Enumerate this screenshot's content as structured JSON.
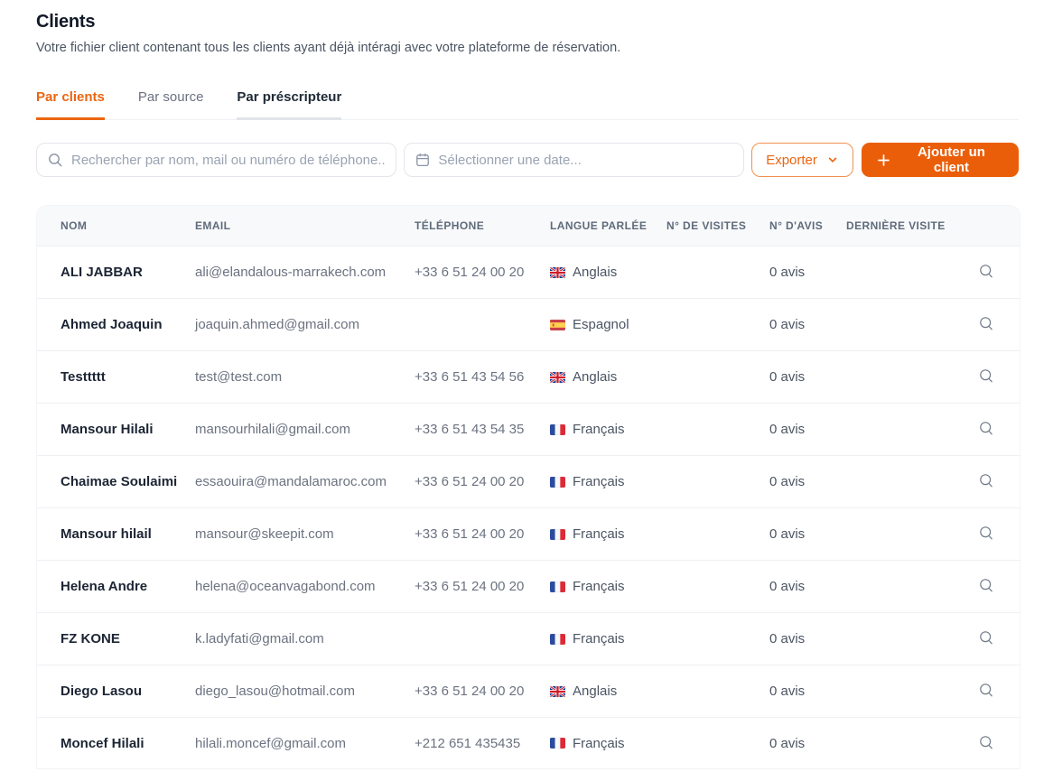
{
  "header": {
    "title": "Clients",
    "subtitle": "Votre fichier client contenant tous les clients ayant déjà intéragi avec votre plateforme de réservation."
  },
  "tabs": [
    {
      "label": "Par clients",
      "active": true
    },
    {
      "label": "Par source",
      "active": false
    },
    {
      "label": "Par préscripteur",
      "active": false
    }
  ],
  "toolbar": {
    "search_placeholder": "Rechercher par nom, mail ou numéro de téléphone...",
    "date_placeholder": "Sélectionner une date...",
    "export_label": "Exporter",
    "add_client_label": "Ajouter un client"
  },
  "colors": {
    "accent_orange": "#EC6511",
    "add_button_orange": "#EB5E09",
    "header_row_bg": "#F8F9FB",
    "muted_text": "#6B7280"
  },
  "table": {
    "columns": [
      "NOM",
      "EMAIL",
      "TÉLÉPHONE",
      "LANGUE PARLÉE",
      "N° DE VISITES",
      "N° D'AVIS",
      "DERNIÈRE VISITE"
    ],
    "rows": [
      {
        "name": "ALI JABBAR",
        "email": "ali@elandalous-marrakech.com",
        "phone": "+33 6 51 24 00 20",
        "language": {
          "flag": "gb",
          "label": "Anglais"
        },
        "visits": "",
        "reviews": "0 avis",
        "last_visit": ""
      },
      {
        "name": "Ahmed Joaquin",
        "email": "joaquin.ahmed@gmail.com",
        "phone": "",
        "language": {
          "flag": "es",
          "label": "Espagnol"
        },
        "visits": "",
        "reviews": "0 avis",
        "last_visit": ""
      },
      {
        "name": "Testtttt",
        "email": "test@test.com",
        "phone": "+33 6 51 43 54 56",
        "language": {
          "flag": "gb",
          "label": "Anglais"
        },
        "visits": "",
        "reviews": "0 avis",
        "last_visit": ""
      },
      {
        "name": "Mansour Hilali",
        "email": "mansourhilali@gmail.com",
        "phone": "+33 6 51 43 54 35",
        "language": {
          "flag": "fr",
          "label": "Français"
        },
        "visits": "",
        "reviews": "0 avis",
        "last_visit": ""
      },
      {
        "name": "Chaimae Soulaimi",
        "email": "essaouira@mandalamaroc.com",
        "phone": "+33 6 51 24 00 20",
        "language": {
          "flag": "fr",
          "label": "Français"
        },
        "visits": "",
        "reviews": "0 avis",
        "last_visit": ""
      },
      {
        "name": "Mansour hilail",
        "email": "mansour@skeepit.com",
        "phone": "+33 6 51 24 00 20",
        "language": {
          "flag": "fr",
          "label": "Français"
        },
        "visits": "",
        "reviews": "0 avis",
        "last_visit": ""
      },
      {
        "name": "Helena Andre",
        "email": "helena@oceanvagabond.com",
        "phone": "+33 6 51 24 00 20",
        "language": {
          "flag": "fr",
          "label": "Français"
        },
        "visits": "",
        "reviews": "0 avis",
        "last_visit": ""
      },
      {
        "name": "FZ KONE",
        "email": "k.ladyfati@gmail.com",
        "phone": "",
        "language": {
          "flag": "fr",
          "label": "Français"
        },
        "visits": "",
        "reviews": "0 avis",
        "last_visit": ""
      },
      {
        "name": "Diego Lasou",
        "email": "diego_lasou@hotmail.com",
        "phone": "+33 6 51 24 00 20",
        "language": {
          "flag": "gb",
          "label": "Anglais"
        },
        "visits": "",
        "reviews": "0 avis",
        "last_visit": ""
      },
      {
        "name": "Moncef Hilali",
        "email": "hilali.moncef@gmail.com",
        "phone": "+212 651 435435",
        "language": {
          "flag": "fr",
          "label": "Français"
        },
        "visits": "",
        "reviews": "0 avis",
        "last_visit": ""
      }
    ]
  }
}
